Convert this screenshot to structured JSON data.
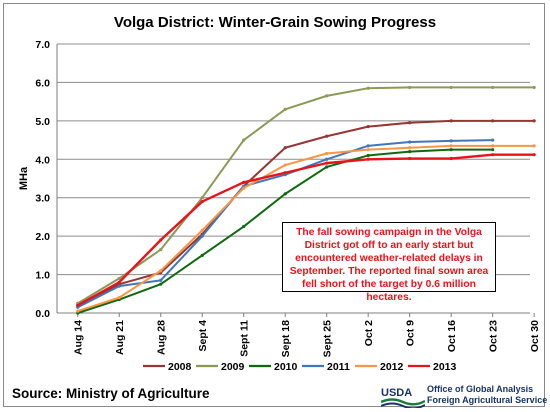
{
  "chart_data": {
    "type": "line",
    "title": "Volga District: Winter-Grain Sowing Progress",
    "ylabel": "MHa",
    "xlabel": "",
    "ylim": [
      0,
      7
    ],
    "y_ticks": [
      "0.0",
      "1.0",
      "2.0",
      "3.0",
      "4.0",
      "5.0",
      "6.0",
      "7.0"
    ],
    "categories": [
      "Aug 14",
      "Aug 21",
      "Aug 28",
      "Sept 4",
      "Sept 11",
      "Sept 18",
      "Sept 25",
      "Oct 2",
      "Oct 9",
      "Oct 16",
      "Oct 23",
      "Oct 30"
    ],
    "grid": "horizontal",
    "legend_position": "bottom",
    "series": [
      {
        "name": "2008",
        "color": "#943634",
        "values": [
          0.2,
          0.75,
          1.05,
          2.05,
          3.3,
          4.3,
          4.6,
          4.85,
          4.95,
          5.0,
          5.0,
          5.0
        ]
      },
      {
        "name": "2009",
        "color": "#8c9a57",
        "values": [
          0.25,
          0.9,
          1.65,
          3.0,
          4.5,
          5.3,
          5.65,
          5.85,
          5.87,
          5.87,
          5.87,
          5.87
        ]
      },
      {
        "name": "2010",
        "color": "#0f6a0f",
        "values": [
          0.0,
          0.35,
          0.75,
          1.5,
          2.25,
          3.1,
          3.8,
          4.1,
          4.2,
          4.25,
          4.25,
          null
        ]
      },
      {
        "name": "2011",
        "color": "#3f77b7",
        "values": [
          0.15,
          0.7,
          0.85,
          2.0,
          3.3,
          3.6,
          4.0,
          4.35,
          4.45,
          4.48,
          4.5,
          null
        ]
      },
      {
        "name": "2012",
        "color": "#f79646",
        "values": [
          0.05,
          0.4,
          1.1,
          2.15,
          3.25,
          3.85,
          4.15,
          4.25,
          4.3,
          4.35,
          4.35,
          4.35
        ]
      },
      {
        "name": "2013",
        "color": "#e8141c",
        "values": [
          0.2,
          0.8,
          1.9,
          2.9,
          3.4,
          3.65,
          3.9,
          4.0,
          4.02,
          4.02,
          4.12,
          4.12
        ]
      }
    ],
    "annotation": "The fall sowing campaign in the Volga District got off to an early start but encountered weather-related delays in September.  The reported final sown area fell short of the target by 0.6 million hectares."
  },
  "footer": {
    "source": "Source:  Ministry of Agriculture",
    "logo_word": "USDA",
    "office_line1": "Office of Global Analysis",
    "office_line2": "Foreign Agricultural Service"
  }
}
